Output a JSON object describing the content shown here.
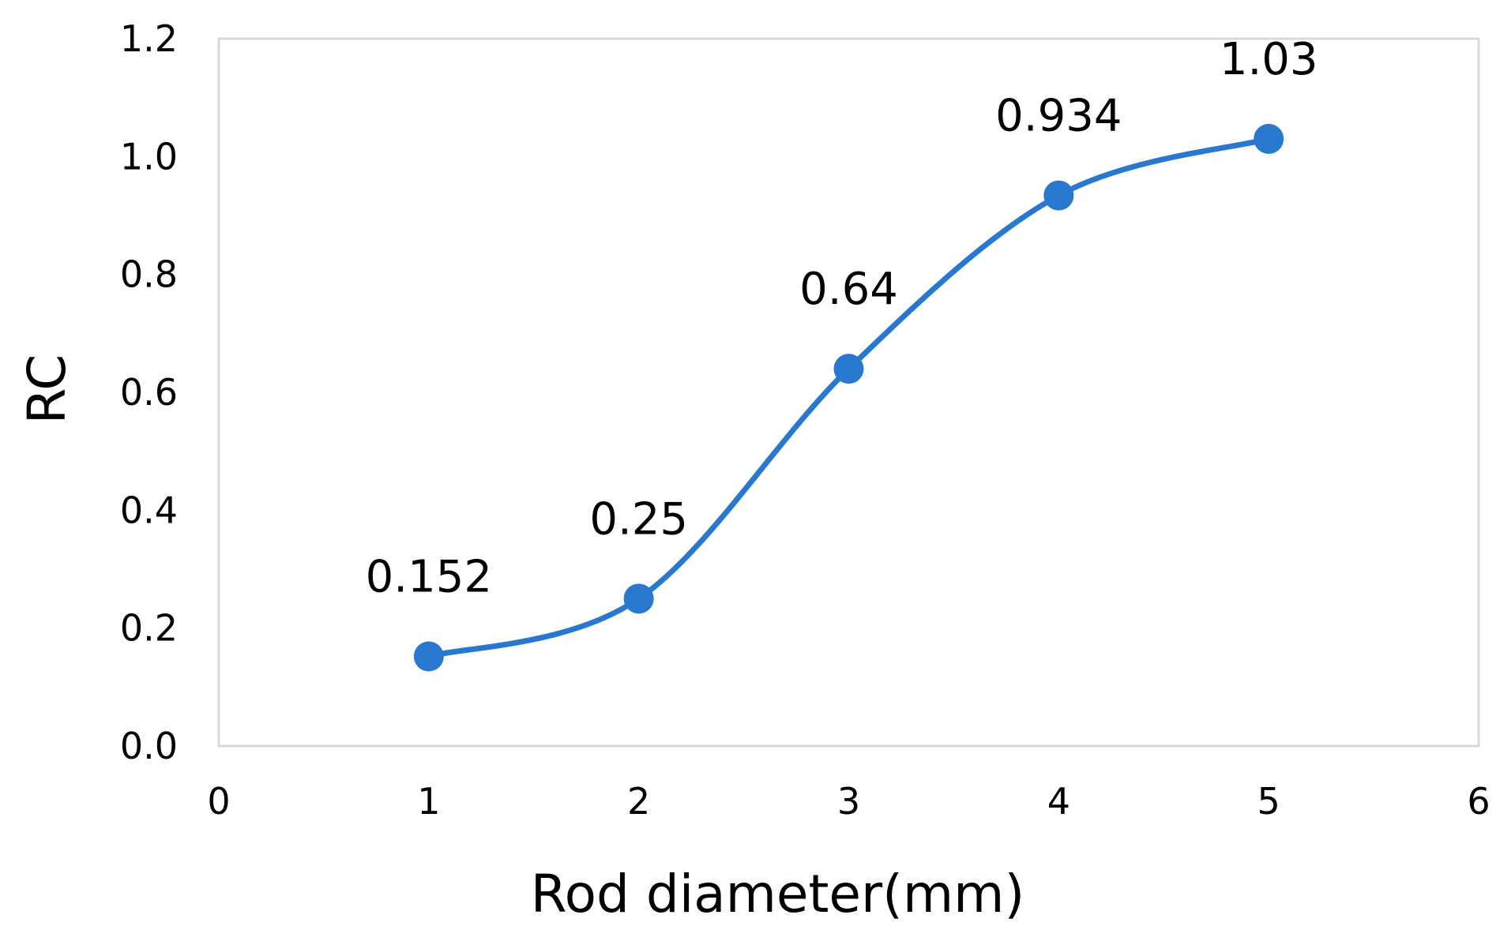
{
  "chart_data": {
    "type": "line",
    "title": "",
    "xlabel": "Rod diameter(mm)",
    "ylabel": "RC",
    "xlim": [
      0,
      6
    ],
    "ylim": [
      0,
      1.2
    ],
    "x_ticks": [
      0,
      1,
      2,
      3,
      4,
      5,
      6
    ],
    "x_tick_labels": [
      "0",
      "1",
      "2",
      "3",
      "4",
      "5",
      "6"
    ],
    "y_ticks": [
      0,
      0.2,
      0.4,
      0.6,
      0.8,
      1.0,
      1.2
    ],
    "y_tick_labels": [
      "0.0",
      "0.2",
      "0.4",
      "0.6",
      "0.8",
      "1.0",
      "1.2"
    ],
    "grid": false,
    "legend": "none",
    "smoothed": true,
    "series": [
      {
        "x": [
          1,
          2,
          3,
          4,
          5
        ],
        "values": [
          0.152,
          0.25,
          0.64,
          0.934,
          1.03
        ],
        "data_labels": [
          "0.152",
          "0.25",
          "0.64",
          "0.934",
          "1.03"
        ],
        "color": "#2878d0"
      }
    ]
  }
}
